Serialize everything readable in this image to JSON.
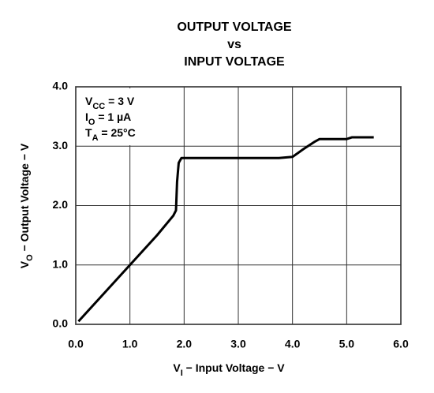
{
  "chart_data": {
    "type": "line",
    "title": [
      "OUTPUT VOLTAGE",
      "vs",
      "INPUT VOLTAGE"
    ],
    "x_label": [
      "V",
      "I",
      " − Input Voltage − V"
    ],
    "y_label": [
      "V",
      "O",
      " − Output Voltage − V"
    ],
    "annotations": [
      [
        "V",
        "CC",
        " = 3 V"
      ],
      [
        "I",
        "O",
        " = 1  µA"
      ],
      [
        "T",
        "A",
        " = 25°C"
      ]
    ],
    "xlim": [
      0,
      6
    ],
    "ylim": [
      0,
      4
    ],
    "xticks": [
      {
        "value": 0,
        "label": "0.0"
      },
      {
        "value": 1,
        "label": "1.0"
      },
      {
        "value": 2,
        "label": "2.0"
      },
      {
        "value": 3,
        "label": "3.0"
      },
      {
        "value": 4,
        "label": "4.0"
      },
      {
        "value": 5,
        "label": "5.0"
      },
      {
        "value": 6,
        "label": "6.0"
      }
    ],
    "yticks": [
      {
        "value": 0,
        "label": "0.0"
      },
      {
        "value": 1,
        "label": "1.0"
      },
      {
        "value": 2,
        "label": "2.0"
      },
      {
        "value": 3,
        "label": "3.0"
      },
      {
        "value": 4,
        "label": "4.0"
      }
    ],
    "grid": true,
    "x": [
      0.05,
      0.5,
      1.0,
      1.5,
      1.8,
      1.85,
      1.87,
      1.9,
      1.95,
      2.0,
      3.0,
      3.75,
      4.0,
      4.2,
      4.4,
      4.5,
      5.0,
      5.1,
      5.5
    ],
    "series": [
      {
        "color": "#000000",
        "values": [
          0.05,
          0.5,
          1.0,
          1.5,
          1.83,
          1.92,
          2.4,
          2.72,
          2.8,
          2.8,
          2.8,
          2.8,
          2.82,
          2.95,
          3.07,
          3.12,
          3.12,
          3.15,
          3.15
        ]
      }
    ]
  }
}
